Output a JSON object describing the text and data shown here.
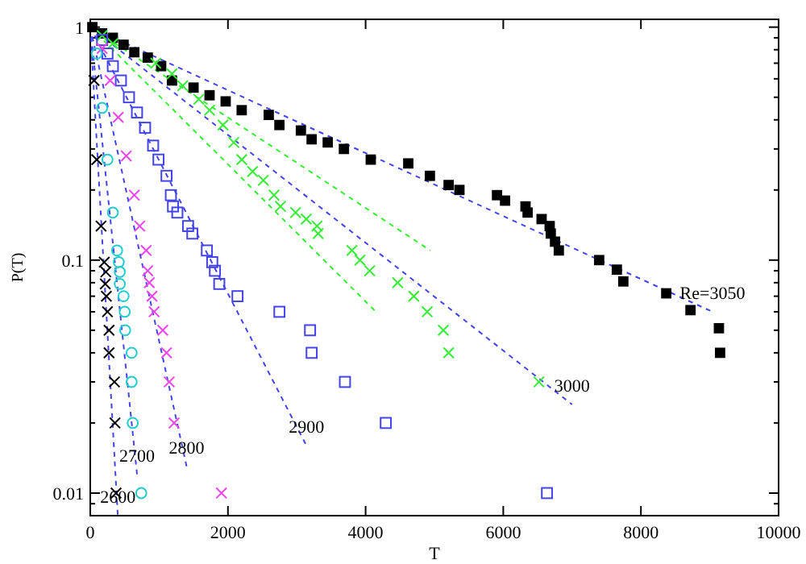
{
  "chart_data": {
    "type": "scatter",
    "xlabel": "T",
    "ylabel": "P(T)",
    "log": "y",
    "grid": false,
    "legend": false,
    "xlim": [
      0,
      10000
    ],
    "xticks": [
      0,
      2000,
      4000,
      6000,
      8000,
      10000
    ],
    "ylim": [
      0.008,
      1.08
    ],
    "yticks": [
      {
        "value": 0.009,
        "label": null
      },
      0.01,
      {
        "value": 0.02,
        "label": null
      },
      {
        "value": 0.03,
        "label": null
      },
      {
        "value": 0.04,
        "label": null
      },
      {
        "value": 0.05,
        "label": null
      },
      {
        "value": 0.06,
        "label": null
      },
      {
        "value": 0.07,
        "label": null
      },
      {
        "value": 0.08,
        "label": null
      },
      {
        "value": 0.09,
        "label": null
      },
      0.1,
      {
        "value": 0.2,
        "label": null
      },
      {
        "value": 0.3,
        "label": null
      },
      {
        "value": 0.4,
        "label": null
      },
      {
        "value": 0.5,
        "label": null
      },
      {
        "value": 0.6,
        "label": null
      },
      {
        "value": 0.7,
        "label": null
      },
      {
        "value": 0.8,
        "label": null
      },
      {
        "value": 0.9,
        "label": null
      },
      1
    ],
    "series": [
      {
        "marker": "cross",
        "color": "#000000",
        "x": [
          55,
          94,
          156,
          203,
          226,
          218,
          234,
          250,
          273,
          273,
          351,
          359,
          375
        ],
        "values": [
          0.59,
          0.27,
          0.14,
          0.098,
          0.089,
          0.079,
          0.07,
          0.06,
          0.05,
          0.04,
          0.03,
          0.02,
          0.01
        ]
      },
      {
        "marker": "circle",
        "color": "#22cccc",
        "x": [
          94,
          172,
          250,
          328,
          390,
          414,
          429,
          429,
          484,
          500,
          507,
          601,
          601,
          617,
          741
        ],
        "values": [
          0.77,
          0.45,
          0.27,
          0.16,
          0.11,
          0.098,
          0.089,
          0.079,
          0.07,
          0.06,
          0.05,
          0.04,
          0.03,
          0.02,
          0.01
        ]
      },
      {
        "marker": "cross",
        "color": "#ee44ee",
        "x": [
          172,
          289,
          406,
          523,
          640,
          718,
          812,
          835,
          858,
          897,
          928,
          1053,
          1108,
          1147,
          1218,
          1905
        ],
        "values": [
          0.81,
          0.59,
          0.41,
          0.28,
          0.19,
          0.14,
          0.11,
          0.09,
          0.08,
          0.07,
          0.06,
          0.05,
          0.04,
          0.03,
          0.02,
          0.01
        ]
      },
      {
        "marker": "square-open",
        "color": "#4444ee",
        "x": [
          172,
          250,
          328,
          445,
          562,
          679,
          796,
          913,
          991,
          1108,
          1171,
          1202,
          1265,
          1421,
          1483,
          1694,
          1772,
          1811,
          1874,
          2139,
          2748,
          3193,
          3216,
          3700,
          4293,
          6635
        ],
        "values": [
          0.88,
          0.77,
          0.68,
          0.59,
          0.5,
          0.43,
          0.37,
          0.31,
          0.27,
          0.23,
          0.19,
          0.17,
          0.16,
          0.14,
          0.13,
          0.11,
          0.098,
          0.09,
          0.079,
          0.07,
          0.06,
          0.05,
          0.04,
          0.03,
          0.02,
          0.01
        ]
      },
      {
        "marker": "cross",
        "color": "#33ee33",
        "x": [
          172,
          328,
          952,
          1187,
          1343,
          1577,
          1733,
          1928,
          2085,
          2201,
          2358,
          2514,
          2670,
          2763,
          2982,
          3138,
          3294,
          3310,
          3801,
          3918,
          4059,
          4466,
          4700,
          4895,
          5129,
          5206,
          6518
        ],
        "values": [
          0.92,
          0.85,
          0.7,
          0.63,
          0.56,
          0.49,
          0.44,
          0.38,
          0.32,
          0.27,
          0.24,
          0.22,
          0.19,
          0.17,
          0.16,
          0.15,
          0.14,
          0.13,
          0.11,
          0.1,
          0.09,
          0.08,
          0.07,
          0.06,
          0.05,
          0.04,
          0.03
        ]
      },
      {
        "marker": "square",
        "color": "#000000",
        "x": [
          30,
          172,
          328,
          484,
          640,
          835,
          1030,
          1187,
          1500,
          1733,
          1967,
          2200,
          2593,
          2748,
          3060,
          3216,
          3450,
          3685,
          4075,
          4620,
          4934,
          5206,
          5363,
          5909,
          6026,
          6323,
          6354,
          6557,
          6674,
          6690,
          6752,
          6807,
          7393,
          7650,
          7744,
          8368,
          8720,
          9133,
          9150
        ],
        "values": [
          1,
          0.94,
          0.9,
          0.84,
          0.78,
          0.74,
          0.68,
          0.59,
          0.55,
          0.51,
          0.48,
          0.44,
          0.42,
          0.38,
          0.36,
          0.33,
          0.32,
          0.3,
          0.27,
          0.26,
          0.23,
          0.21,
          0.2,
          0.19,
          0.18,
          0.17,
          0.16,
          0.15,
          0.14,
          0.13,
          0.12,
          0.11,
          0.1,
          0.091,
          0.081,
          0.072,
          0.061,
          0.051,
          0.04
        ]
      },
      {
        "type": "line",
        "name": "2600",
        "marker": "none",
        "line_style": "dashed",
        "color": "#4444ee",
        "x": [
          0,
          400
        ],
        "values": [
          1,
          0.008
        ]
      },
      {
        "type": "line",
        "name": "2700",
        "marker": "none",
        "line_style": "dashed",
        "color": "#4444ee",
        "x": [
          0,
          680
        ],
        "values": [
          1,
          0.012
        ]
      },
      {
        "type": "line",
        "name": "2800",
        "marker": "none",
        "line_style": "dashed",
        "color": "#4444ee",
        "x": [
          0,
          1400
        ],
        "values": [
          1,
          0.013
        ]
      },
      {
        "type": "line",
        "name": "2900",
        "marker": "none",
        "line_style": "dashed",
        "color": "#4444ee",
        "x": [
          0,
          3140
        ],
        "values": [
          1,
          0.016
        ]
      },
      {
        "type": "line",
        "marker": "none",
        "line_style": "dashed",
        "color": "#33ee33",
        "x": [
          0,
          4150
        ],
        "values": [
          1,
          0.06
        ]
      },
      {
        "type": "line",
        "marker": "none",
        "line_style": "dashed",
        "color": "#33ee33",
        "x": [
          0,
          4940
        ],
        "values": [
          1,
          0.11
        ]
      },
      {
        "type": "line",
        "name": "3000",
        "marker": "none",
        "line_style": "dashed",
        "color": "#4444ee",
        "x": [
          0,
          7000
        ],
        "values": [
          1,
          0.024
        ]
      },
      {
        "type": "line",
        "name": "Re=3050",
        "marker": "none",
        "line_style": "dashed",
        "color": "#4444ee",
        "x": [
          0,
          9040
        ],
        "values": [
          1,
          0.06
        ]
      }
    ]
  }
}
